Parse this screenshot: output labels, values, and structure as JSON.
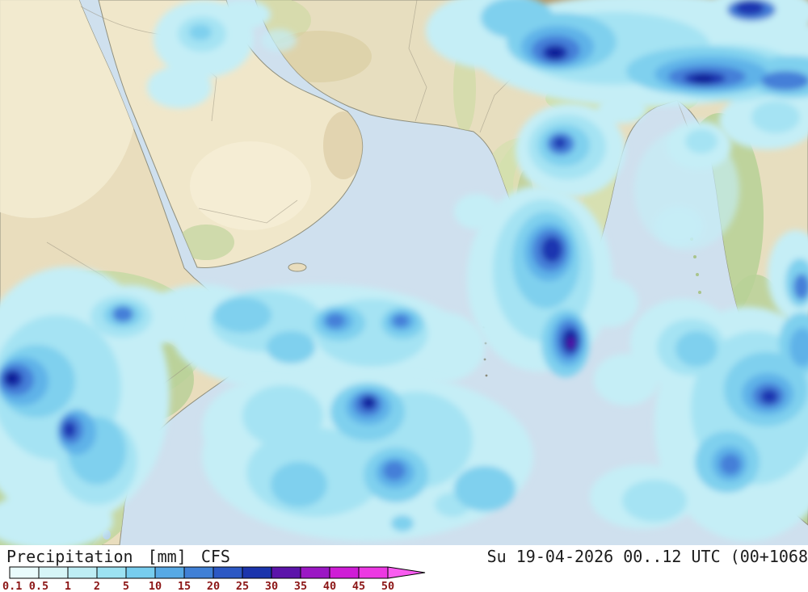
{
  "footer": {
    "product": "Precipitation",
    "unit": "[mm]",
    "model": "CFS",
    "datetime": "Su 19-04-2026 00..12 UTC (00+1068"
  },
  "legend": {
    "labels": [
      "0.1",
      "0.5",
      "1",
      "2",
      "5",
      "10",
      "15",
      "20",
      "25",
      "30",
      "35",
      "40",
      "45",
      "50"
    ],
    "colors": [
      "#e9fbfc",
      "#d6f5f7",
      "#bdedf4",
      "#9ce2f2",
      "#77cdee",
      "#57a9e4",
      "#4080d6",
      "#2c58c4",
      "#1b34ac",
      "#5c14aa",
      "#9b17c4",
      "#cf1dd6",
      "#ec38e2"
    ],
    "arrow_color": "#f95cf0",
    "label_color": "#8c1616",
    "swatch_border_color": "#000000"
  },
  "map": {
    "ocean_color": "#cfe0ee",
    "land_color": "#e9ddbd",
    "vegetation_color": "#c6d9a4",
    "plateau_color": "#b49766",
    "precip_levels": {
      "light": "#c5eef6",
      "moderate": "#7fd0ee",
      "heavy": "#447fd8",
      "very_heavy": "#1d36b0",
      "extreme": "#111b94",
      "violet_core": "#5a10aa"
    }
  }
}
